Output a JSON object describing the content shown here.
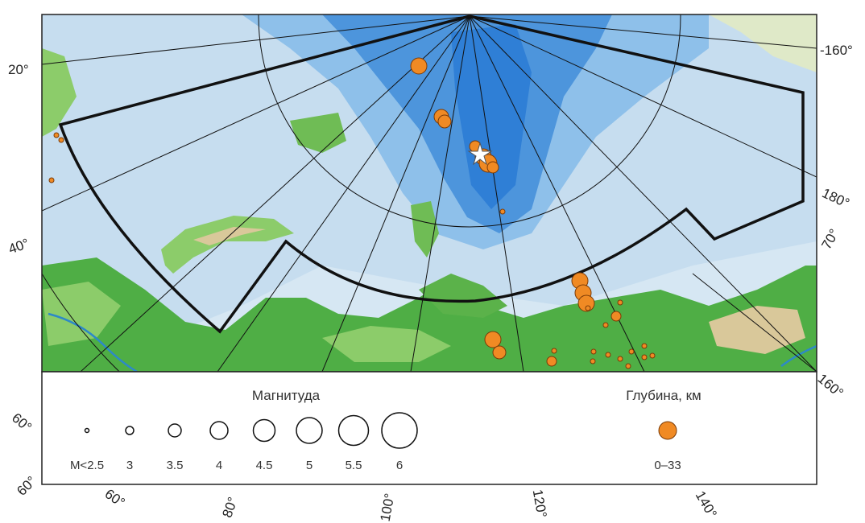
{
  "map": {
    "colors": {
      "deep_water": "#2f7fd6",
      "mid_water": "#6aaae8",
      "shelf_water": "#b9d7ee",
      "shallow_water": "#d6e7f3",
      "land_low": "#4fae45",
      "land_mid": "#8ccc6a",
      "land_high": "#d9c89a",
      "river": "#2d89c8",
      "epicenter_fill": "#f08a24",
      "epicenter_stroke": "#7a3b08",
      "region_boundary": "#111111",
      "graticule": "#111111"
    },
    "star_marker": "white-star-icon",
    "left_labels": [
      "20°",
      "40°",
      "60°",
      "60°"
    ],
    "right_labels": [
      "-160°",
      "180°",
      "70°",
      "160°"
    ],
    "bottom_labels": [
      "60°",
      "80°",
      "100°",
      "120°",
      "140°"
    ]
  },
  "legend": {
    "magnitude_title": "Магнитуда",
    "magnitude_classes": [
      "M<2.5",
      "3",
      "3.5",
      "4",
      "4.5",
      "5",
      "5.5",
      "6"
    ],
    "depth_title": "Глубина, км",
    "depth_classes": [
      "0–33"
    ]
  }
}
